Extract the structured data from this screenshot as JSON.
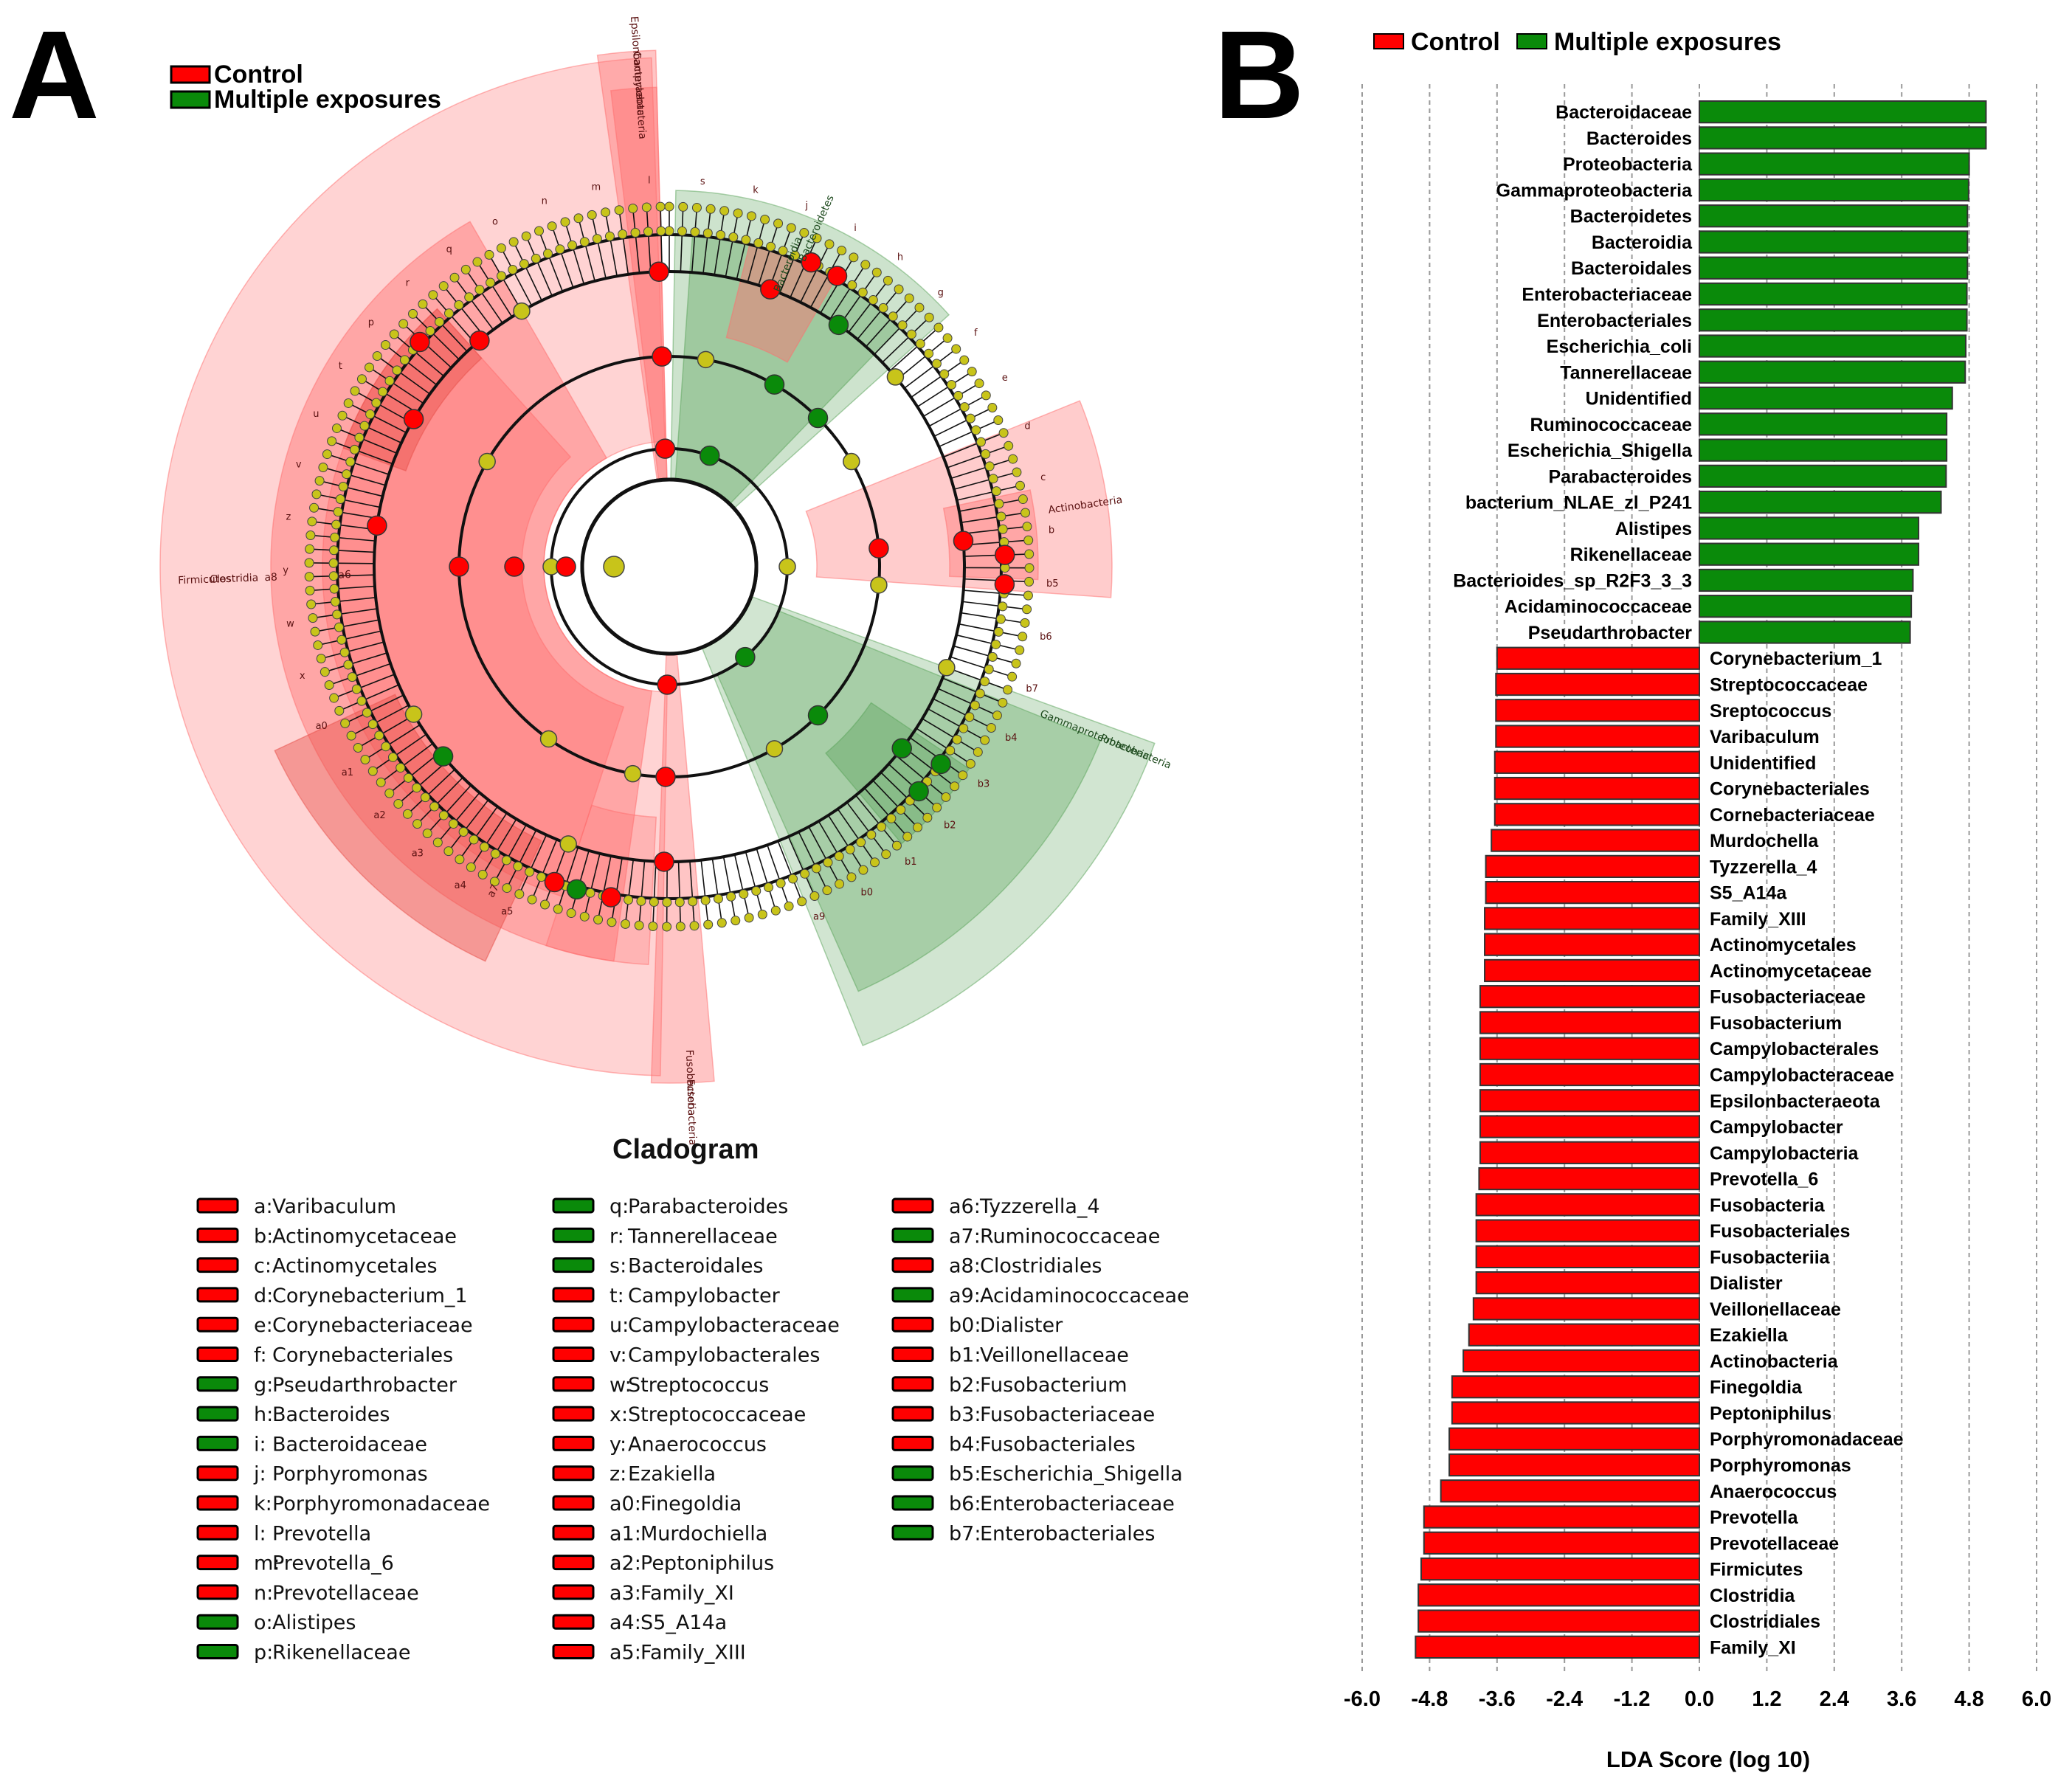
{
  "panels": {
    "a_letter": "A",
    "b_letter": "B"
  },
  "colors": {
    "control": "#ff0000",
    "multiple": "#0a8a0a",
    "node_neutral": "#c8c41a"
  },
  "groups": {
    "control": "Control",
    "multiple": "Multiple exposures"
  },
  "cladogram": {
    "title": "Cladogram",
    "clade_labels_control": [
      "Epsilonbacteraeota",
      "Campylobacteria",
      "Firmicutes",
      "Clostridia",
      "a8",
      "a6",
      "a7",
      "Actinobacteria",
      "Fusobacteria",
      "Fusobacteria"
    ],
    "clade_labels_multiple": [
      "Bacteroidetes",
      "Bacteroidia",
      "Gammaproteobacteria",
      "Proteobacteria"
    ],
    "node_letters": [
      "a5",
      "a4",
      "a3",
      "a2",
      "a1",
      "a0",
      "x",
      "w",
      "y",
      "z",
      "v",
      "u",
      "t",
      "p",
      "r",
      "q",
      "o",
      "n",
      "m",
      "l",
      "s",
      "k",
      "j",
      "i",
      "h",
      "g",
      "f",
      "e",
      "d",
      "c",
      "b",
      "b5",
      "b6",
      "b7",
      "b4",
      "b3",
      "b2",
      "b1",
      "b0",
      "a9"
    ],
    "key": [
      {
        "code": "a",
        "name": "Varibaculum",
        "group": "control"
      },
      {
        "code": "b",
        "name": "Actinomycetaceae",
        "group": "control"
      },
      {
        "code": "c",
        "name": "Actinomycetales",
        "group": "control"
      },
      {
        "code": "d",
        "name": "Corynebacterium_1",
        "group": "control"
      },
      {
        "code": "e",
        "name": "Corynebacteriaceae",
        "group": "control"
      },
      {
        "code": "f",
        "name": "Corynebacteriales",
        "group": "control"
      },
      {
        "code": "g",
        "name": "Pseudarthrobacter",
        "group": "multiple"
      },
      {
        "code": "h",
        "name": "Bacteroides",
        "group": "multiple"
      },
      {
        "code": "i",
        "name": "Bacteroidaceae",
        "group": "multiple"
      },
      {
        "code": "j",
        "name": "Porphyromonas",
        "group": "control"
      },
      {
        "code": "k",
        "name": "Porphyromonadaceae",
        "group": "control"
      },
      {
        "code": "l",
        "name": "Prevotella",
        "group": "control"
      },
      {
        "code": "m",
        "name": "Prevotella_6",
        "group": "control"
      },
      {
        "code": "n",
        "name": "Prevotellaceae",
        "group": "control"
      },
      {
        "code": "o",
        "name": "Alistipes",
        "group": "multiple"
      },
      {
        "code": "p",
        "name": "Rikenellaceae",
        "group": "multiple"
      },
      {
        "code": "q",
        "name": "Parabacteroides",
        "group": "multiple"
      },
      {
        "code": "r",
        "name": "Tannerellaceae",
        "group": "multiple"
      },
      {
        "code": "s",
        "name": "Bacteroidales",
        "group": "multiple"
      },
      {
        "code": "t",
        "name": "Campylobacter",
        "group": "control"
      },
      {
        "code": "u",
        "name": "Campylobacteraceae",
        "group": "control"
      },
      {
        "code": "v",
        "name": "Campylobacterales",
        "group": "control"
      },
      {
        "code": "w",
        "name": "Streptococcus",
        "group": "control"
      },
      {
        "code": "x",
        "name": "Streptococcaceae",
        "group": "control"
      },
      {
        "code": "y",
        "name": "Anaerococcus",
        "group": "control"
      },
      {
        "code": "z",
        "name": "Ezakiella",
        "group": "control"
      },
      {
        "code": "a0",
        "name": "Finegoldia",
        "group": "control"
      },
      {
        "code": "a1",
        "name": "Murdochiella",
        "group": "control"
      },
      {
        "code": "a2",
        "name": "Peptoniphilus",
        "group": "control"
      },
      {
        "code": "a3",
        "name": "Family_XI",
        "group": "control"
      },
      {
        "code": "a4",
        "name": "S5_A14a",
        "group": "control"
      },
      {
        "code": "a5",
        "name": "Family_XIII",
        "group": "control"
      },
      {
        "code": "a6",
        "name": "Tyzzerella_4",
        "group": "control"
      },
      {
        "code": "a7",
        "name": "Ruminococcaceae",
        "group": "multiple"
      },
      {
        "code": "a8",
        "name": "Clostridiales",
        "group": "control"
      },
      {
        "code": "a9",
        "name": "Acidaminococcaceae",
        "group": "multiple"
      },
      {
        "code": "b0",
        "name": "Dialister",
        "group": "control"
      },
      {
        "code": "b1",
        "name": "Veillonellaceae",
        "group": "control"
      },
      {
        "code": "b2",
        "name": "Fusobacterium",
        "group": "control"
      },
      {
        "code": "b3",
        "name": "Fusobacteriaceae",
        "group": "control"
      },
      {
        "code": "b4",
        "name": "Fusobacteriales",
        "group": "control"
      },
      {
        "code": "b5",
        "name": "Escherichia_Shigella",
        "group": "multiple"
      },
      {
        "code": "b6",
        "name": "Enterobacteriaceae",
        "group": "multiple"
      },
      {
        "code": "b7",
        "name": "Enterobacteriales",
        "group": "multiple"
      }
    ]
  },
  "chart_data": {
    "type": "bar",
    "orientation": "horizontal",
    "xlabel": "LDA Score (log 10)",
    "xlim": [
      -6.0,
      6.0
    ],
    "ticks": [
      "-6.0",
      "-4.8",
      "-3.6",
      "-2.4",
      "-1.2",
      "0.0",
      "1.2",
      "2.4",
      "3.6",
      "4.8",
      "6.0"
    ],
    "grid": true,
    "legend": "top",
    "series": [
      {
        "name": "Control",
        "color": "#ff0000"
      },
      {
        "name": "Multiple exposures",
        "color": "#0a8a0a"
      }
    ],
    "bars": [
      {
        "label": "Bacteroidaceae",
        "value": 5.1,
        "group": "multiple"
      },
      {
        "label": "Bacteroides",
        "value": 5.1,
        "group": "multiple"
      },
      {
        "label": "Proteobacteria",
        "value": 4.8,
        "group": "multiple"
      },
      {
        "label": "Gammaproteobacteria",
        "value": 4.79,
        "group": "multiple"
      },
      {
        "label": "Bacteroidetes",
        "value": 4.77,
        "group": "multiple"
      },
      {
        "label": "Bacteroidia",
        "value": 4.77,
        "group": "multiple"
      },
      {
        "label": "Bacteroidales",
        "value": 4.77,
        "group": "multiple"
      },
      {
        "label": "Enterobacteriaceae",
        "value": 4.76,
        "group": "multiple"
      },
      {
        "label": "Enterobacteriales",
        "value": 4.76,
        "group": "multiple"
      },
      {
        "label": "Escherichia_coli",
        "value": 4.74,
        "group": "multiple"
      },
      {
        "label": "Tannerellaceae",
        "value": 4.73,
        "group": "multiple"
      },
      {
        "label": "Unidentified",
        "value": 4.5,
        "group": "multiple"
      },
      {
        "label": "Ruminococcaceae",
        "value": 4.4,
        "group": "multiple"
      },
      {
        "label": "Escherichia_Shigella",
        "value": 4.4,
        "group": "multiple"
      },
      {
        "label": "Parabacteroides",
        "value": 4.39,
        "group": "multiple"
      },
      {
        "label": "bacterium_NLAE_zl_P241",
        "value": 4.3,
        "group": "multiple"
      },
      {
        "label": "Alistipes",
        "value": 3.9,
        "group": "multiple"
      },
      {
        "label": "Rikenellaceae",
        "value": 3.9,
        "group": "multiple"
      },
      {
        "label": "Bacterioides_sp_R2F3_3_3",
        "value": 3.8,
        "group": "multiple"
      },
      {
        "label": "Acidaminococcaceae",
        "value": 3.77,
        "group": "multiple"
      },
      {
        "label": "Pseudarthrobacter",
        "value": 3.75,
        "group": "multiple"
      },
      {
        "label": "Corynebacterium_1",
        "value": -3.6,
        "group": "control"
      },
      {
        "label": "Streptococcaceae",
        "value": -3.62,
        "group": "control"
      },
      {
        "label": "Sreptococcus",
        "value": -3.62,
        "group": "control"
      },
      {
        "label": "Varibaculum",
        "value": -3.62,
        "group": "control"
      },
      {
        "label": "Unidentified",
        "value": -3.64,
        "group": "control"
      },
      {
        "label": "Corynebacteriales",
        "value": -3.64,
        "group": "control"
      },
      {
        "label": "Cornebacteriaceae",
        "value": -3.64,
        "group": "control"
      },
      {
        "label": "Murdochella",
        "value": -3.7,
        "group": "control"
      },
      {
        "label": "Tyzzerella_4",
        "value": -3.8,
        "group": "control"
      },
      {
        "label": "S5_A14a",
        "value": -3.8,
        "group": "control"
      },
      {
        "label": "Family_XIII",
        "value": -3.82,
        "group": "control"
      },
      {
        "label": "Actinomycetales",
        "value": -3.82,
        "group": "control"
      },
      {
        "label": "Actinomycetaceae",
        "value": -3.82,
        "group": "control"
      },
      {
        "label": "Fusobacteriaceae",
        "value": -3.9,
        "group": "control"
      },
      {
        "label": "Fusobacterium",
        "value": -3.9,
        "group": "control"
      },
      {
        "label": "Campylobacterales",
        "value": -3.9,
        "group": "control"
      },
      {
        "label": "Campylobacteraceae",
        "value": -3.9,
        "group": "control"
      },
      {
        "label": "Epsilonbacteraeota",
        "value": -3.9,
        "group": "control"
      },
      {
        "label": "Campylobacter",
        "value": -3.9,
        "group": "control"
      },
      {
        "label": "Campylobacteria",
        "value": -3.9,
        "group": "control"
      },
      {
        "label": "Prevotella_6",
        "value": -3.92,
        "group": "control"
      },
      {
        "label": "Fusobacteria",
        "value": -3.97,
        "group": "control"
      },
      {
        "label": "Fusobacteriales",
        "value": -3.97,
        "group": "control"
      },
      {
        "label": "Fusobacteriia",
        "value": -3.97,
        "group": "control"
      },
      {
        "label": "Dialister",
        "value": -3.97,
        "group": "control"
      },
      {
        "label": "Veillonellaceae",
        "value": -4.02,
        "group": "control"
      },
      {
        "label": "Ezakiella",
        "value": -4.1,
        "group": "control"
      },
      {
        "label": "Actinobacteria",
        "value": -4.2,
        "group": "control"
      },
      {
        "label": "Finegoldia",
        "value": -4.4,
        "group": "control"
      },
      {
        "label": "Peptoniphilus",
        "value": -4.4,
        "group": "control"
      },
      {
        "label": "Porphyromonadaceae",
        "value": -4.45,
        "group": "control"
      },
      {
        "label": "Porphyromonas",
        "value": -4.45,
        "group": "control"
      },
      {
        "label": "Anaerococcus",
        "value": -4.6,
        "group": "control"
      },
      {
        "label": "Prevotella",
        "value": -4.9,
        "group": "control"
      },
      {
        "label": "Prevotellaceae",
        "value": -4.9,
        "group": "control"
      },
      {
        "label": "Firmicutes",
        "value": -4.95,
        "group": "control"
      },
      {
        "label": "Clostridia",
        "value": -5.0,
        "group": "control"
      },
      {
        "label": "Clostridiales",
        "value": -5.0,
        "group": "control"
      },
      {
        "label": "Family_XI",
        "value": -5.05,
        "group": "control"
      }
    ]
  }
}
